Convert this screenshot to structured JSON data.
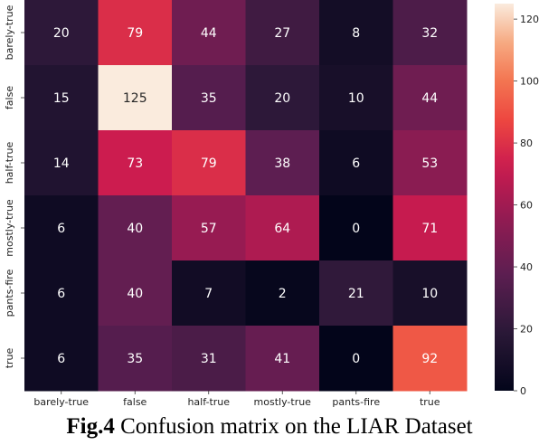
{
  "chart_data": {
    "type": "heatmap",
    "title": "",
    "xlabel": "",
    "ylabel": "",
    "x_categories": [
      "barely-true",
      "false",
      "half-true",
      "mostly-true",
      "pants-fire",
      "true"
    ],
    "y_categories": [
      "barely-true",
      "false",
      "half-true",
      "mostly-true",
      "pants-fire",
      "true"
    ],
    "values": [
      [
        20,
        79,
        44,
        27,
        8,
        32
      ],
      [
        15,
        125,
        35,
        20,
        10,
        44
      ],
      [
        14,
        73,
        79,
        38,
        6,
        53
      ],
      [
        6,
        40,
        57,
        64,
        0,
        71
      ],
      [
        6,
        40,
        7,
        2,
        21,
        10
      ],
      [
        6,
        35,
        31,
        41,
        0,
        92
      ]
    ],
    "colorbar": {
      "min": 0,
      "max": 125,
      "ticks": [
        0,
        20,
        40,
        60,
        80,
        100,
        120
      ],
      "colormap": "rocket"
    },
    "grid": false,
    "legend": "colorbar-right"
  },
  "caption": {
    "label": "Fig.4",
    "text": " Confusion matrix on the LIAR Dataset"
  }
}
